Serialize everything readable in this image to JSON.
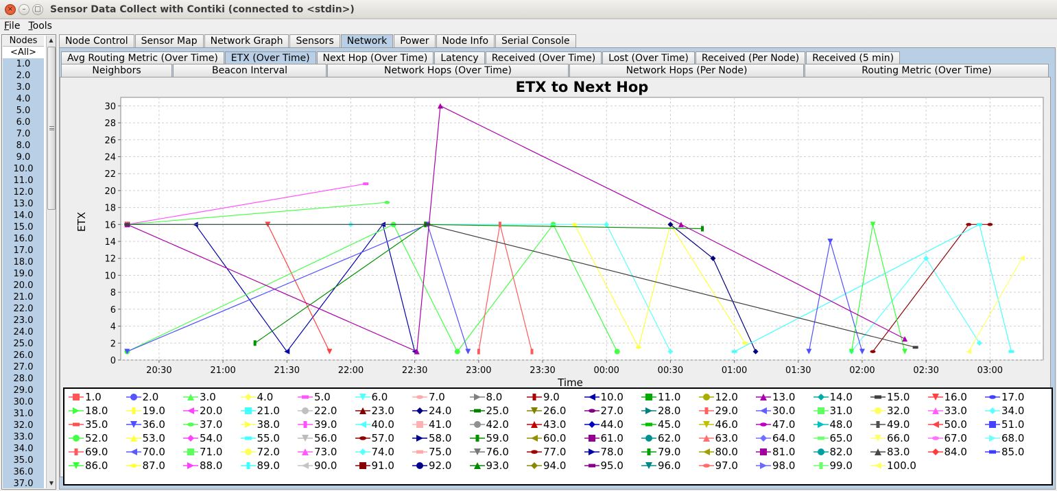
{
  "window": {
    "title": "Sensor Data Collect with Contiki (connected to <stdin>)",
    "close_glyph": "×",
    "minimize_glyph": "–",
    "maximize_glyph": "□"
  },
  "menu": [
    {
      "label": "File",
      "mnemonic": "F",
      "rest": "ile"
    },
    {
      "label": "Tools",
      "mnemonic": "T",
      "rest": "ools"
    }
  ],
  "nodes_panel": {
    "header": "Nodes",
    "items": [
      "<All>",
      "1.0",
      "2.0",
      "3.0",
      "4.0",
      "5.0",
      "6.0",
      "7.0",
      "8.0",
      "9.0",
      "10.0",
      "11.0",
      "12.0",
      "13.0",
      "14.0",
      "15.0",
      "16.0",
      "17.0",
      "18.0",
      "19.0",
      "20.0",
      "21.0",
      "22.0",
      "23.0",
      "24.0",
      "25.0",
      "26.0",
      "27.0",
      "28.0",
      "29.0",
      "30.0",
      "31.0",
      "32.0",
      "33.0",
      "34.0",
      "35.0",
      "36.0",
      "37.0"
    ],
    "selected": "<All>"
  },
  "main_tabs": [
    {
      "label": "Node Control",
      "selected": false
    },
    {
      "label": "Sensor Map",
      "selected": false
    },
    {
      "label": "Network Graph",
      "selected": false
    },
    {
      "label": "Sensors",
      "selected": false
    },
    {
      "label": "Network",
      "selected": true
    },
    {
      "label": "Power",
      "selected": false
    },
    {
      "label": "Node Info",
      "selected": false
    },
    {
      "label": "Serial Console",
      "selected": false
    }
  ],
  "sub_tabs_row1": [
    {
      "label": "Avg Routing Metric (Over Time)",
      "selected": false
    },
    {
      "label": "ETX (Over Time)",
      "selected": true
    },
    {
      "label": "Next Hop (Over Time)",
      "selected": false
    },
    {
      "label": "Latency",
      "selected": false
    },
    {
      "label": "Received (Over Time)",
      "selected": false
    },
    {
      "label": "Lost (Over Time)",
      "selected": false
    },
    {
      "label": "Received (Per Node)",
      "selected": false
    },
    {
      "label": "Received (5 min)",
      "selected": false
    }
  ],
  "sub_tabs_row2": [
    {
      "label": "Neighbors"
    },
    {
      "label": "Beacon Interval"
    },
    {
      "label": "Network Hops (Over Time)"
    },
    {
      "label": "Network Hops (Per Node)"
    },
    {
      "label": "Routing Metric (Over Time)"
    }
  ],
  "chart_data": {
    "type": "line",
    "title": "ETX to Next Hop",
    "xlabel": "Time",
    "ylabel": "ETX",
    "ylim": [
      0,
      31
    ],
    "yticks": [
      0,
      2,
      4,
      6,
      8,
      10,
      12,
      14,
      16,
      18,
      20,
      22,
      24,
      26,
      28,
      30
    ],
    "xlim": [
      "20:12",
      "03:25"
    ],
    "xticks": [
      "20:30",
      "21:00",
      "21:30",
      "22:00",
      "22:30",
      "23:00",
      "23:30",
      "00:00",
      "00:30",
      "01:00",
      "01:30",
      "02:00",
      "02:30",
      "03:00"
    ],
    "grid": true,
    "legend_position": "bottom",
    "series_count": 100,
    "series": [
      {
        "name": "1.0",
        "color": "#ff5555",
        "marker": "square"
      },
      {
        "name": "2.0",
        "color": "#5555ff",
        "marker": "circle"
      },
      {
        "name": "3.0",
        "color": "#55ff55",
        "marker": "triangle-up"
      },
      {
        "name": "4.0",
        "color": "#ffff55",
        "marker": "diamond"
      },
      {
        "name": "5.0",
        "color": "#ff55ff",
        "marker": "rect-h"
      },
      {
        "name": "6.0",
        "color": "#55ffff",
        "marker": "triangle-down"
      },
      {
        "name": "7.0",
        "color": "#ffaaaa",
        "marker": "ellipse"
      },
      {
        "name": "8.0",
        "color": "#808080",
        "marker": "triangle-right"
      },
      {
        "name": "9.0",
        "color": "#aa0000",
        "marker": "rect-v"
      },
      {
        "name": "10.0",
        "color": "#0000aa",
        "marker": "triangle-left"
      },
      {
        "name": "11.0",
        "color": "#00aa00",
        "marker": "square"
      },
      {
        "name": "12.0",
        "color": "#aaaa00",
        "marker": "circle"
      },
      {
        "name": "13.0",
        "color": "#aa00aa",
        "marker": "triangle-up",
        "points": [
          [
            "20:15",
            16.0
          ],
          [
            "22:31",
            1.0
          ],
          [
            "22:42",
            30.0
          ],
          [
            "00:35",
            16.0
          ],
          [
            "02:20",
            2.5
          ]
        ]
      },
      {
        "name": "14.0",
        "color": "#00aaaa",
        "marker": "diamond"
      },
      {
        "name": "15.0",
        "color": "#404040",
        "marker": "rect-h",
        "points": [
          [
            "20:15",
            16.0
          ],
          [
            "22:36",
            16.0
          ],
          [
            "02:25",
            1.5
          ]
        ]
      },
      {
        "name": "16.0",
        "color": "#ff4040",
        "marker": "triangle-down"
      },
      {
        "name": "17.0",
        "color": "#4040ff",
        "marker": "ellipse"
      },
      {
        "name": "18.0",
        "color": "#40ff40",
        "marker": "triangle-right"
      },
      {
        "name": "19.0",
        "color": "#ffff40",
        "marker": "rect-v"
      },
      {
        "name": "20.0",
        "color": "#ff40ff",
        "marker": "triangle-left"
      },
      {
        "name": "21.0",
        "color": "#40ffff",
        "marker": "square"
      },
      {
        "name": "22.0",
        "color": "#c0c0c0",
        "marker": "circle"
      },
      {
        "name": "23.0",
        "color": "#800000",
        "marker": "triangle-up"
      },
      {
        "name": "24.0",
        "color": "#000080",
        "marker": "diamond"
      },
      {
        "name": "25.0",
        "color": "#008000",
        "marker": "rect-h"
      },
      {
        "name": "26.0",
        "color": "#808000",
        "marker": "triangle-down"
      },
      {
        "name": "27.0",
        "color": "#800080",
        "marker": "ellipse"
      },
      {
        "name": "28.0",
        "color": "#008080",
        "marker": "triangle-right"
      },
      {
        "name": "29.0",
        "color": "#ff6060",
        "marker": "rect-v"
      },
      {
        "name": "30.0",
        "color": "#6060ff",
        "marker": "triangle-left"
      },
      {
        "name": "31.0",
        "color": "#60ff60",
        "marker": "square"
      },
      {
        "name": "32.0",
        "color": "#ffff60",
        "marker": "circle"
      },
      {
        "name": "33.0",
        "color": "#ff60ff",
        "marker": "triangle-up"
      },
      {
        "name": "34.0",
        "color": "#60ffff",
        "marker": "diamond"
      },
      {
        "name": "35.0",
        "color": "#ff5050",
        "marker": "rect-h"
      },
      {
        "name": "36.0",
        "color": "#5050ff",
        "marker": "triangle-down"
      },
      {
        "name": "37.0",
        "color": "#50ff50",
        "marker": "ellipse"
      },
      {
        "name": "38.0",
        "color": "#ffff50",
        "marker": "triangle-right"
      },
      {
        "name": "39.0",
        "color": "#ff50ff",
        "marker": "rect-v"
      },
      {
        "name": "40.0",
        "color": "#50ffff",
        "marker": "triangle-left"
      },
      {
        "name": "41.0",
        "color": "#ffb0b0",
        "marker": "square"
      },
      {
        "name": "42.0",
        "color": "#909090",
        "marker": "circle"
      },
      {
        "name": "43.0",
        "color": "#c00000",
        "marker": "triangle-up"
      },
      {
        "name": "44.0",
        "color": "#0000c0",
        "marker": "diamond"
      },
      {
        "name": "45.0",
        "color": "#00c000",
        "marker": "rect-h"
      },
      {
        "name": "46.0",
        "color": "#c0c000",
        "marker": "triangle-down"
      },
      {
        "name": "47.0",
        "color": "#c000c0",
        "marker": "ellipse"
      },
      {
        "name": "48.0",
        "color": "#00c0c0",
        "marker": "triangle-right"
      },
      {
        "name": "49.0",
        "color": "#505050",
        "marker": "rect-v"
      },
      {
        "name": "50.0",
        "color": "#ff4444",
        "marker": "triangle-left"
      },
      {
        "name": "51.0",
        "color": "#4444ff",
        "marker": "square"
      },
      {
        "name": "52.0",
        "color": "#44ff44",
        "marker": "circle"
      },
      {
        "name": "53.0",
        "color": "#ffff44",
        "marker": "triangle-up"
      },
      {
        "name": "54.0",
        "color": "#ff44ff",
        "marker": "diamond"
      },
      {
        "name": "55.0",
        "color": "#44ffff",
        "marker": "rect-h"
      },
      {
        "name": "56.0",
        "color": "#bbbbbb",
        "marker": "triangle-down"
      },
      {
        "name": "57.0",
        "color": "#900000",
        "marker": "ellipse"
      },
      {
        "name": "58.0",
        "color": "#000090",
        "marker": "triangle-right"
      },
      {
        "name": "59.0",
        "color": "#009000",
        "marker": "rect-v"
      },
      {
        "name": "60.0",
        "color": "#909000",
        "marker": "triangle-left"
      },
      {
        "name": "61.0",
        "color": "#900090",
        "marker": "square"
      },
      {
        "name": "62.0",
        "color": "#009090",
        "marker": "circle"
      },
      {
        "name": "63.0",
        "color": "#ff7070",
        "marker": "triangle-up"
      },
      {
        "name": "64.0",
        "color": "#7070ff",
        "marker": "diamond"
      },
      {
        "name": "65.0",
        "color": "#70ff70",
        "marker": "rect-h"
      },
      {
        "name": "66.0",
        "color": "#ffff70",
        "marker": "triangle-down"
      },
      {
        "name": "67.0",
        "color": "#ff70ff",
        "marker": "ellipse"
      },
      {
        "name": "68.0",
        "color": "#70ffff",
        "marker": "triangle-right"
      },
      {
        "name": "69.0",
        "color": "#ff5a5a",
        "marker": "rect-v"
      },
      {
        "name": "70.0",
        "color": "#5a5aff",
        "marker": "triangle-left"
      },
      {
        "name": "71.0",
        "color": "#5aff5a",
        "marker": "square"
      },
      {
        "name": "72.0",
        "color": "#ffff5a",
        "marker": "circle"
      },
      {
        "name": "73.0",
        "color": "#ff5aff",
        "marker": "triangle-up"
      },
      {
        "name": "74.0",
        "color": "#5affff",
        "marker": "diamond"
      },
      {
        "name": "75.0",
        "color": "#ffa8a8",
        "marker": "rect-h"
      },
      {
        "name": "76.0",
        "color": "#787878",
        "marker": "triangle-down"
      },
      {
        "name": "77.0",
        "color": "#a00000",
        "marker": "ellipse"
      },
      {
        "name": "78.0",
        "color": "#0000a0",
        "marker": "triangle-right"
      },
      {
        "name": "79.0",
        "color": "#00a000",
        "marker": "rect-v"
      },
      {
        "name": "80.0",
        "color": "#a0a000",
        "marker": "triangle-left"
      },
      {
        "name": "81.0",
        "color": "#a000a0",
        "marker": "square"
      },
      {
        "name": "82.0",
        "color": "#00a0a0",
        "marker": "circle"
      },
      {
        "name": "83.0",
        "color": "#484848",
        "marker": "triangle-up"
      },
      {
        "name": "84.0",
        "color": "#ff3c3c",
        "marker": "diamond"
      },
      {
        "name": "85.0",
        "color": "#3c3cff",
        "marker": "rect-h"
      },
      {
        "name": "86.0",
        "color": "#3cff3c",
        "marker": "triangle-down"
      },
      {
        "name": "87.0",
        "color": "#ffff3c",
        "marker": "ellipse"
      },
      {
        "name": "88.0",
        "color": "#ff3cff",
        "marker": "triangle-right"
      },
      {
        "name": "89.0",
        "color": "#3cffff",
        "marker": "rect-v"
      },
      {
        "name": "90.0",
        "color": "#c4c4c4",
        "marker": "triangle-left"
      },
      {
        "name": "91.0",
        "color": "#880000",
        "marker": "square"
      },
      {
        "name": "92.0",
        "color": "#000088",
        "marker": "circle"
      },
      {
        "name": "93.0",
        "color": "#008800",
        "marker": "triangle-up"
      },
      {
        "name": "94.0",
        "color": "#888800",
        "marker": "diamond"
      },
      {
        "name": "95.0",
        "color": "#880088",
        "marker": "rect-h"
      },
      {
        "name": "96.0",
        "color": "#008888",
        "marker": "triangle-down"
      },
      {
        "name": "97.0",
        "color": "#ff6a6a",
        "marker": "ellipse"
      },
      {
        "name": "98.0",
        "color": "#6a6aff",
        "marker": "triangle-right"
      },
      {
        "name": "99.0",
        "color": "#6aff6a",
        "marker": "rect-v"
      },
      {
        "name": "100.0",
        "color": "#ffff6a",
        "marker": "triangle-left"
      }
    ],
    "sample_points": [
      {
        "series": "5.0",
        "points": [
          [
            "20:15",
            16.0
          ],
          [
            "22:07",
            20.8
          ]
        ]
      },
      {
        "series": "37.0",
        "points": [
          [
            "20:15",
            16.0
          ],
          [
            "22:17",
            18.6
          ]
        ]
      },
      {
        "series": "10.0",
        "points": [
          [
            "20:15",
            16.0
          ],
          [
            "20:47",
            16.0
          ],
          [
            "21:30",
            1.0
          ],
          [
            "22:15",
            16.0
          ],
          [
            "22:30",
            1.0
          ]
        ]
      },
      {
        "series": "16.0",
        "points": [
          [
            "20:15",
            16.0
          ],
          [
            "21:21",
            16.0
          ],
          [
            "21:50",
            1.0
          ]
        ]
      },
      {
        "series": "52.0",
        "points": [
          [
            "20:15",
            1.0
          ],
          [
            "22:20",
            16.0
          ],
          [
            "22:50",
            1.0
          ],
          [
            "23:35",
            16.0
          ],
          [
            "00:05",
            1.0
          ]
        ]
      },
      {
        "series": "36.0",
        "points": [
          [
            "20:15",
            1.0
          ],
          [
            "22:36",
            16.0
          ],
          [
            "22:55",
            1.0
          ]
        ]
      },
      {
        "series": "34.0",
        "points": [
          [
            "20:15",
            16.0
          ],
          [
            "22:00",
            16.0
          ],
          [
            "00:00",
            16.0
          ],
          [
            "00:30",
            1.0
          ]
        ]
      },
      {
        "series": "87.0",
        "points": [
          [
            "23:45",
            16.0
          ],
          [
            "00:15",
            1.5
          ],
          [
            "00:30",
            16.0
          ],
          [
            "01:05",
            2.0
          ]
        ]
      },
      {
        "series": "24.0",
        "points": [
          [
            "00:30",
            16.0
          ],
          [
            "00:50",
            12.0
          ],
          [
            "01:10",
            1.0
          ]
        ]
      },
      {
        "series": "59.0",
        "points": [
          [
            "21:15",
            2.0
          ],
          [
            "22:35",
            16.0
          ],
          [
            "00:45",
            15.5
          ]
        ]
      },
      {
        "series": "74.0",
        "points": [
          [
            "01:55",
            1.0
          ],
          [
            "02:30",
            12.0
          ],
          [
            "02:55",
            2.0
          ]
        ]
      },
      {
        "series": "57.0",
        "points": [
          [
            "02:05",
            1.0
          ],
          [
            "02:50",
            16.0
          ],
          [
            "03:00",
            16.0
          ]
        ]
      },
      {
        "series": "55.0",
        "points": [
          [
            "01:00",
            1.0
          ],
          [
            "02:55",
            16.0
          ],
          [
            "03:10",
            1.0
          ]
        ]
      },
      {
        "series": "100.0",
        "points": [
          [
            "02:50",
            1.0
          ],
          [
            "03:15",
            12.0
          ]
        ]
      },
      {
        "series": "36.0",
        "points": [
          [
            "01:35",
            1.0
          ],
          [
            "01:45",
            14.0
          ],
          [
            "02:00",
            1.0
          ]
        ]
      },
      {
        "series": "86.0",
        "points": [
          [
            "01:55",
            1.0
          ],
          [
            "02:05",
            16.0
          ],
          [
            "02:20",
            1.0
          ]
        ]
      },
      {
        "series": "69.0",
        "points": [
          [
            "23:00",
            1.0
          ],
          [
            "23:10",
            16.0
          ],
          [
            "23:25",
            1.0
          ]
        ]
      }
    ]
  }
}
